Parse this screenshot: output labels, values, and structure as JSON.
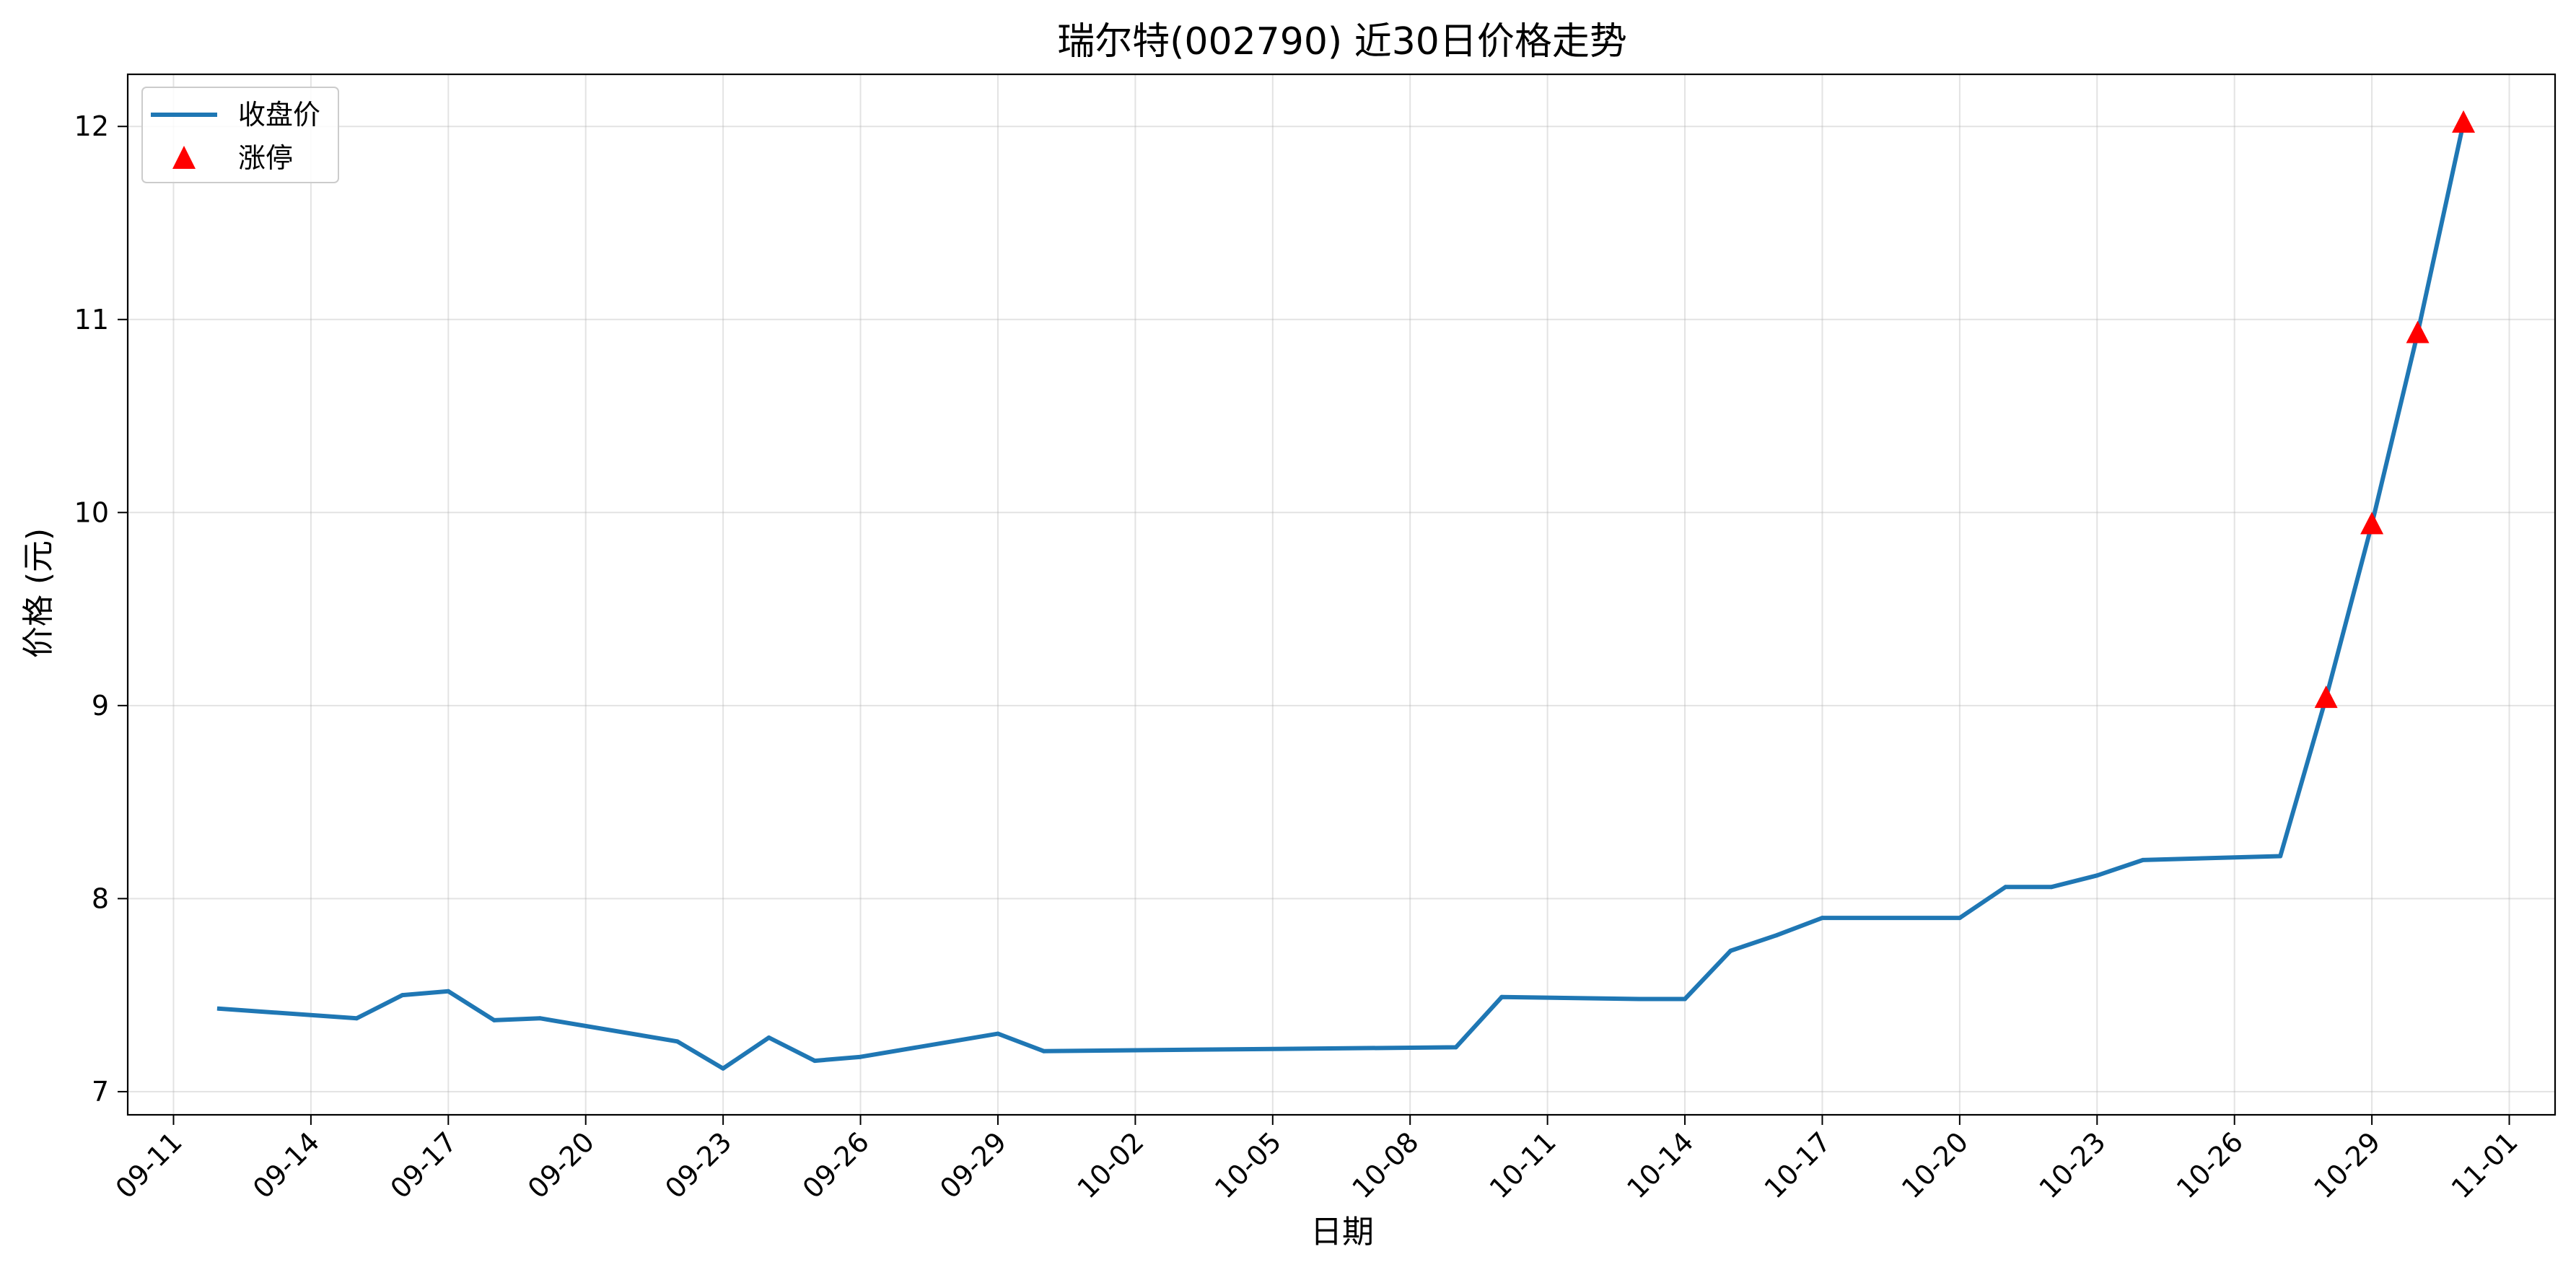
{
  "chart_data": {
    "type": "line",
    "title": "瑞尔特(002790) 近30日价格走势",
    "xlabel": "日期",
    "ylabel": "价格 (元)",
    "ylim": [
      6.88,
      12.27
    ],
    "xlim": [
      "2024-09-10",
      "2024-11-02"
    ],
    "grid": true,
    "legend_position": "top-left",
    "y_ticks": [
      7,
      8,
      9,
      10,
      11,
      12
    ],
    "x_ticks": [
      {
        "date": "2024-09-11",
        "label": "09-11"
      },
      {
        "date": "2024-09-14",
        "label": "09-14"
      },
      {
        "date": "2024-09-17",
        "label": "09-17"
      },
      {
        "date": "2024-09-20",
        "label": "09-20"
      },
      {
        "date": "2024-09-23",
        "label": "09-23"
      },
      {
        "date": "2024-09-26",
        "label": "09-26"
      },
      {
        "date": "2024-09-29",
        "label": "09-29"
      },
      {
        "date": "2024-10-02",
        "label": "10-02"
      },
      {
        "date": "2024-10-05",
        "label": "10-05"
      },
      {
        "date": "2024-10-08",
        "label": "10-08"
      },
      {
        "date": "2024-10-11",
        "label": "10-11"
      },
      {
        "date": "2024-10-14",
        "label": "10-14"
      },
      {
        "date": "2024-10-17",
        "label": "10-17"
      },
      {
        "date": "2024-10-20",
        "label": "10-20"
      },
      {
        "date": "2024-10-23",
        "label": "10-23"
      },
      {
        "date": "2024-10-26",
        "label": "10-26"
      },
      {
        "date": "2024-10-29",
        "label": "10-29"
      },
      {
        "date": "2024-11-01",
        "label": "11-01"
      }
    ],
    "series": [
      {
        "name": "收盘价",
        "color": "#1f77b4",
        "kind": "line",
        "points": [
          {
            "x": "2024-09-12",
            "y": 7.43
          },
          {
            "x": "2024-09-15",
            "y": 7.38
          },
          {
            "x": "2024-09-16",
            "y": 7.5
          },
          {
            "x": "2024-09-17",
            "y": 7.52
          },
          {
            "x": "2024-09-18",
            "y": 7.37
          },
          {
            "x": "2024-09-19",
            "y": 7.38
          },
          {
            "x": "2024-09-22",
            "y": 7.26
          },
          {
            "x": "2024-09-23",
            "y": 7.12
          },
          {
            "x": "2024-09-24",
            "y": 7.28
          },
          {
            "x": "2024-09-25",
            "y": 7.16
          },
          {
            "x": "2024-09-26",
            "y": 7.18
          },
          {
            "x": "2024-09-29",
            "y": 7.3
          },
          {
            "x": "2024-09-30",
            "y": 7.21
          },
          {
            "x": "2024-10-09",
            "y": 7.23
          },
          {
            "x": "2024-10-10",
            "y": 7.49
          },
          {
            "x": "2024-10-13",
            "y": 7.48
          },
          {
            "x": "2024-10-14",
            "y": 7.48
          },
          {
            "x": "2024-10-15",
            "y": 7.73
          },
          {
            "x": "2024-10-16",
            "y": 7.81
          },
          {
            "x": "2024-10-17",
            "y": 7.9
          },
          {
            "x": "2024-10-20",
            "y": 7.9
          },
          {
            "x": "2024-10-21",
            "y": 8.06
          },
          {
            "x": "2024-10-22",
            "y": 8.06
          },
          {
            "x": "2024-10-23",
            "y": 8.12
          },
          {
            "x": "2024-10-24",
            "y": 8.2
          },
          {
            "x": "2024-10-27",
            "y": 8.22
          },
          {
            "x": "2024-10-28",
            "y": 9.04
          },
          {
            "x": "2024-10-29",
            "y": 9.94
          },
          {
            "x": "2024-10-30",
            "y": 10.93
          },
          {
            "x": "2024-10-31",
            "y": 12.02
          }
        ]
      },
      {
        "name": "涨停",
        "color": "#ff0000",
        "kind": "scatter",
        "marker": "triangle",
        "points": [
          {
            "x": "2024-10-28",
            "y": 9.04
          },
          {
            "x": "2024-10-29",
            "y": 9.94
          },
          {
            "x": "2024-10-30",
            "y": 10.93
          },
          {
            "x": "2024-10-31",
            "y": 12.02
          }
        ]
      }
    ]
  }
}
